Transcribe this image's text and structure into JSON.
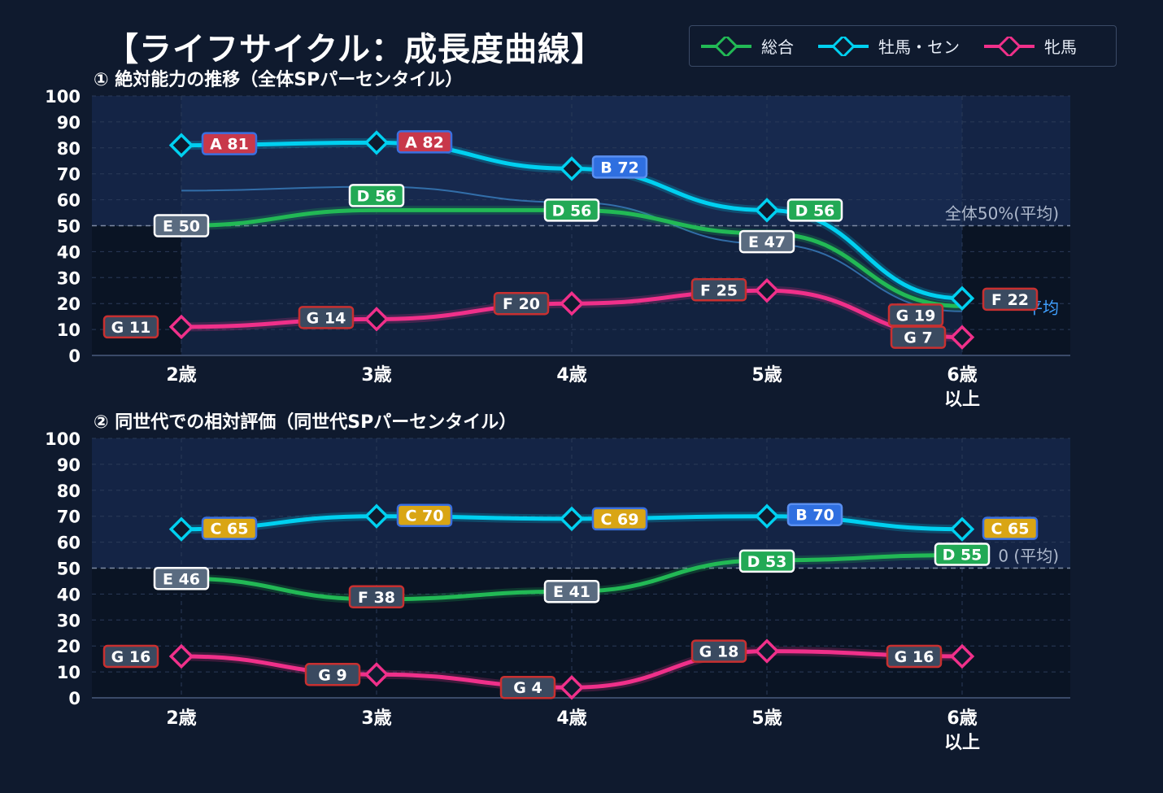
{
  "title": "【ライフサイクル：成長度曲線】",
  "legend": [
    {
      "name": "総合",
      "color": "#22b955"
    },
    {
      "name": "牡馬・セン",
      "color": "#00d0f0"
    },
    {
      "name": "牝馬",
      "color": "#f0308a"
    }
  ],
  "chart_data": [
    {
      "type": "line",
      "title": "① 絶対能力の推移（全体SPパーセンタイル）",
      "categories": [
        "2歳",
        "3歳",
        "4歳",
        "5歳",
        "6歳\n以上"
      ],
      "ylim": [
        0,
        100
      ],
      "yticks": [
        0,
        10,
        20,
        30,
        40,
        50,
        60,
        70,
        80,
        90,
        100
      ],
      "grid": true,
      "reference_line": {
        "value": 50,
        "label": "全体50%(平均)"
      },
      "overlapped_text": "平均",
      "faint_line": {
        "values": [
          63.5,
          65,
          59,
          43,
          17
        ]
      },
      "series": [
        {
          "name": "総合",
          "color": "#22b955",
          "values": [
            50,
            56,
            56,
            47,
            19
          ],
          "labels": [
            "E 50",
            "D 56",
            "D 56",
            "E 47",
            "G 19"
          ],
          "grades": [
            "E",
            "D",
            "D",
            "E",
            "G"
          ]
        },
        {
          "name": "牡馬・セン",
          "color": "#00d0f0",
          "values": [
            81,
            82,
            72,
            56,
            22
          ],
          "labels": [
            "A 81",
            "A 82",
            "B 72",
            "D 56",
            "F 22"
          ],
          "grades": [
            "A",
            "A",
            "B",
            "D",
            "F"
          ]
        },
        {
          "name": "牝馬",
          "color": "#f0308a",
          "values": [
            11,
            14,
            20,
            25,
            7
          ],
          "labels": [
            "G 11",
            "G 14",
            "F 20",
            "F 25",
            "G 7"
          ],
          "grades": [
            "G",
            "G",
            "F",
            "F",
            "G"
          ]
        }
      ]
    },
    {
      "type": "line",
      "title": "② 同世代での相対評価（同世代SPパーセンタイル）",
      "categories": [
        "2歳",
        "3歳",
        "4歳",
        "5歳",
        "6歳\n以上"
      ],
      "ylim": [
        0,
        100
      ],
      "yticks": [
        0,
        10,
        20,
        30,
        40,
        50,
        60,
        70,
        80,
        90,
        100
      ],
      "grid": true,
      "reference_line": {
        "value": 50,
        "label": "0 (平均)"
      },
      "series": [
        {
          "name": "総合",
          "color": "#22b955",
          "values": [
            46,
            38,
            41,
            53,
            55
          ],
          "labels": [
            "E 46",
            "F 38",
            "E 41",
            "D 53",
            "D 55"
          ],
          "grades": [
            "E",
            "F",
            "E",
            "D",
            "D"
          ]
        },
        {
          "name": "牡馬・セン",
          "color": "#00d0f0",
          "values": [
            65,
            70,
            69,
            70,
            65
          ],
          "labels": [
            "C 65",
            "C 70",
            "C 69",
            "B 70",
            "C 65"
          ],
          "grades": [
            "C",
            "C",
            "C",
            "B",
            "C"
          ]
        },
        {
          "name": "牝馬",
          "color": "#f0308a",
          "values": [
            16,
            9,
            4,
            18,
            16
          ],
          "labels": [
            "G 16",
            "G 9",
            "G 4",
            "G 18",
            "G 16"
          ],
          "grades": [
            "G",
            "G",
            "G",
            "G",
            "G"
          ]
        }
      ]
    }
  ],
  "grade_colors": {
    "A": {
      "fill": "#c8384a",
      "stroke": "#3a6fe0"
    },
    "B": {
      "fill": "#2f6fe0",
      "stroke": "#5a8ff0"
    },
    "C": {
      "fill": "#d9a514",
      "stroke": "#3a6fe0"
    },
    "D": {
      "fill": "#22a955",
      "stroke": "#ffffff"
    },
    "E": {
      "fill": "#5a6b80",
      "stroke": "#ffffff"
    },
    "F": {
      "fill": "#3a4a60",
      "stroke": "#c83030"
    },
    "G": {
      "fill": "#3a4a60",
      "stroke": "#c83030"
    }
  }
}
